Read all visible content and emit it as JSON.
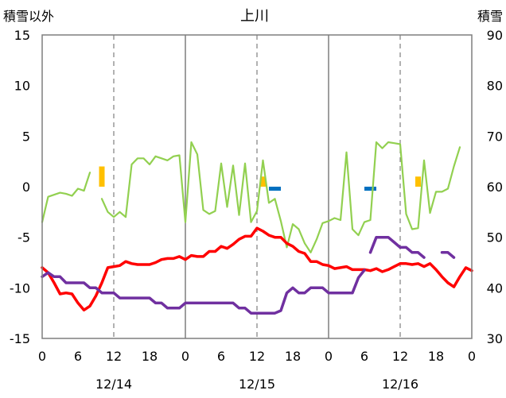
{
  "chart_data": {
    "type": "line",
    "title": "上川",
    "left_axis_label": "積雪以外",
    "right_axis_label": "積雪",
    "y_left": {
      "min": -15,
      "max": 15,
      "ticks": [
        -15,
        -10,
        -5,
        0,
        5,
        10,
        15
      ]
    },
    "y_right": {
      "min": 30,
      "max": 90,
      "ticks": [
        30,
        40,
        50,
        60,
        70,
        80,
        90
      ]
    },
    "x": {
      "min": 0,
      "max": 72,
      "ticks": [
        0,
        6,
        12,
        18,
        24,
        30,
        36,
        42,
        48,
        54,
        60,
        66,
        72
      ]
    },
    "x_tick_labels": [
      "0",
      "6",
      "12",
      "18",
      "0",
      "6",
      "12",
      "18",
      "0",
      "6",
      "12",
      "18",
      "0"
    ],
    "date_labels": [
      {
        "label": "12/14",
        "x": 12
      },
      {
        "label": "12/15",
        "x": 36
      },
      {
        "label": "12/16",
        "x": 60
      }
    ],
    "grid": {
      "solid_x": [
        24,
        48
      ],
      "dashed_x": [
        12,
        36,
        60
      ],
      "horizontal": "none"
    },
    "series": [
      {
        "key": "green",
        "color": "#92d050",
        "axis": "left",
        "points": [
          [
            0,
            -3.5
          ],
          [
            1,
            -1
          ],
          [
            3,
            -0.6
          ],
          [
            4,
            -0.7
          ],
          [
            5,
            -0.9
          ],
          [
            6,
            -0.2
          ],
          [
            7,
            -0.4
          ],
          [
            8,
            1.4
          ],
          null,
          [
            10,
            -1.2
          ],
          [
            11,
            -2.5
          ],
          [
            12,
            -3
          ],
          [
            13,
            -2.5
          ],
          [
            14,
            -3
          ],
          [
            15,
            2.2
          ],
          [
            16,
            2.8
          ],
          [
            17,
            2.8
          ],
          [
            18,
            2.2
          ],
          [
            19,
            3
          ],
          [
            20,
            2.8
          ],
          [
            21,
            2.6
          ],
          [
            22,
            3
          ],
          [
            23,
            3.1
          ],
          [
            24,
            -3.5
          ],
          [
            25,
            4.4
          ],
          [
            26,
            3.2
          ],
          [
            27,
            -2.3
          ],
          [
            28,
            -2.7
          ],
          [
            29,
            -2.4
          ],
          [
            30,
            2.3
          ],
          [
            31,
            -2
          ],
          [
            32,
            2.1
          ],
          [
            33,
            -2.8
          ],
          [
            34,
            2.3
          ],
          [
            35,
            -3.5
          ],
          [
            36,
            -2.4
          ],
          [
            37,
            2.6
          ],
          [
            38,
            -1.6
          ],
          [
            39,
            -1.2
          ],
          [
            40,
            -3.4
          ],
          [
            41,
            -6
          ],
          [
            42,
            -3.7
          ],
          [
            43,
            -4.2
          ],
          [
            44,
            -5.6
          ],
          [
            45,
            -6.5
          ],
          [
            46,
            -5.2
          ],
          [
            47,
            -3.6
          ],
          [
            48,
            -3.4
          ],
          [
            49,
            -3.1
          ],
          [
            50,
            -3.3
          ],
          [
            51,
            3.4
          ],
          [
            52,
            -4.2
          ],
          [
            53,
            -4.8
          ],
          [
            54,
            -3.5
          ],
          [
            55,
            -3.3
          ],
          [
            56,
            4.4
          ],
          [
            57,
            3.8
          ],
          [
            58,
            4.4
          ],
          [
            59,
            4.3
          ],
          [
            60,
            4.2
          ],
          [
            61,
            -2.7
          ],
          [
            62,
            -4.2
          ],
          [
            63,
            -4.1
          ],
          [
            64,
            2.6
          ],
          [
            65,
            -2.6
          ],
          [
            66,
            -0.5
          ],
          [
            67,
            -0.5
          ],
          [
            68,
            -0.2
          ],
          [
            69,
            2
          ],
          [
            70,
            3.9
          ]
        ]
      },
      {
        "key": "red",
        "color": "#ff0000",
        "axis": "left",
        "points": [
          [
            0,
            -8
          ],
          [
            1,
            -8.5
          ],
          [
            2,
            -9.5
          ],
          [
            3,
            -10.6
          ],
          [
            4,
            -10.5
          ],
          [
            5,
            -10.6
          ],
          [
            6,
            -11.5
          ],
          [
            7,
            -12.2
          ],
          [
            8,
            -11.8
          ],
          [
            9,
            -10.8
          ],
          [
            10,
            -9.5
          ],
          [
            11,
            -8
          ],
          [
            12,
            -7.9
          ],
          [
            13,
            -7.8
          ],
          [
            14,
            -7.4
          ],
          [
            15,
            -7.6
          ],
          [
            16,
            -7.7
          ],
          [
            17,
            -7.7
          ],
          [
            18,
            -7.7
          ],
          [
            19,
            -7.5
          ],
          [
            20,
            -7.2
          ],
          [
            21,
            -7.1
          ],
          [
            22,
            -7.1
          ],
          [
            23,
            -6.9
          ],
          [
            24,
            -7.2
          ],
          [
            25,
            -6.8
          ],
          [
            26,
            -6.9
          ],
          [
            27,
            -6.9
          ],
          [
            28,
            -6.4
          ],
          [
            29,
            -6.4
          ],
          [
            30,
            -5.9
          ],
          [
            31,
            -6.1
          ],
          [
            32,
            -5.7
          ],
          [
            33,
            -5.2
          ],
          [
            34,
            -4.9
          ],
          [
            35,
            -4.9
          ],
          [
            36,
            -4.1
          ],
          [
            37,
            -4.4
          ],
          [
            38,
            -4.8
          ],
          [
            39,
            -5
          ],
          [
            40,
            -5
          ],
          [
            41,
            -5.6
          ],
          [
            42,
            -5.9
          ],
          [
            43,
            -6.4
          ],
          [
            44,
            -6.6
          ],
          [
            45,
            -7.4
          ],
          [
            46,
            -7.4
          ],
          [
            47,
            -7.7
          ],
          [
            48,
            -7.8
          ],
          [
            49,
            -8.1
          ],
          [
            50,
            -8
          ],
          [
            51,
            -7.9
          ],
          [
            52,
            -8.2
          ],
          [
            53,
            -8.2
          ],
          [
            54,
            -8.2
          ],
          [
            55,
            -8.3
          ],
          [
            56,
            -8.1
          ],
          [
            57,
            -8.4
          ],
          [
            58,
            -8.2
          ],
          [
            59,
            -7.9
          ],
          [
            60,
            -7.6
          ],
          [
            61,
            -7.6
          ],
          [
            62,
            -7.7
          ],
          [
            63,
            -7.6
          ],
          [
            64,
            -7.9
          ],
          [
            65,
            -7.6
          ],
          [
            66,
            -8.2
          ],
          [
            67,
            -8.9
          ],
          [
            68,
            -9.5
          ],
          [
            69,
            -9.9
          ],
          [
            70,
            -8.9
          ],
          [
            71,
            -8
          ],
          [
            72,
            -8.3
          ]
        ]
      },
      {
        "key": "purple",
        "color": "#7030a0",
        "axis": "right",
        "points": [
          [
            0,
            42.2
          ],
          [
            1,
            43
          ],
          [
            2,
            42.2
          ],
          [
            3,
            42.2
          ],
          [
            4,
            41
          ],
          [
            5,
            41
          ],
          [
            6,
            41
          ],
          [
            7,
            41
          ],
          [
            8,
            40
          ],
          [
            9,
            40
          ],
          [
            10,
            39
          ],
          [
            11,
            39
          ],
          [
            12,
            39
          ],
          [
            13,
            38
          ],
          [
            14,
            38
          ],
          [
            15,
            38
          ],
          [
            16,
            38
          ],
          [
            17,
            38
          ],
          [
            18,
            38
          ],
          [
            19,
            37
          ],
          [
            20,
            37
          ],
          [
            21,
            36
          ],
          [
            22,
            36
          ],
          [
            23,
            36
          ],
          [
            24,
            37
          ],
          [
            25,
            37
          ],
          [
            26,
            37
          ],
          [
            27,
            37
          ],
          [
            28,
            37
          ],
          [
            29,
            37
          ],
          [
            30,
            37
          ],
          [
            31,
            37
          ],
          [
            32,
            37
          ],
          [
            33,
            36
          ],
          [
            34,
            36
          ],
          [
            35,
            35
          ],
          [
            36,
            35
          ],
          [
            37,
            35
          ],
          [
            38,
            35
          ],
          [
            39,
            35
          ],
          [
            40,
            35.5
          ],
          [
            41,
            39
          ],
          [
            42,
            40
          ],
          [
            43,
            39
          ],
          [
            44,
            39
          ],
          [
            45,
            40
          ],
          [
            46,
            40
          ],
          [
            47,
            40
          ],
          [
            48,
            39
          ],
          [
            49,
            39
          ],
          [
            50,
            39
          ],
          [
            51,
            39
          ],
          [
            52,
            39
          ],
          [
            53,
            42
          ],
          [
            54,
            43.5
          ],
          null,
          [
            55,
            47
          ],
          [
            56,
            50
          ],
          [
            57,
            50
          ],
          [
            58,
            50
          ],
          [
            59,
            49
          ],
          [
            60,
            48
          ],
          [
            61,
            48
          ],
          [
            62,
            47
          ],
          [
            63,
            47
          ],
          [
            64,
            46
          ],
          null,
          [
            67,
            47
          ],
          [
            68,
            47
          ],
          [
            69,
            46
          ]
        ]
      }
    ],
    "bars": [
      {
        "x": 10,
        "value": 2,
        "color": "#ffc000"
      },
      {
        "x": 37,
        "value": 1,
        "color": "#ffc000"
      },
      {
        "x": 63,
        "value": 1,
        "color": "#ffc000"
      },
      {
        "x": 39,
        "value": -0.4,
        "color": "#0070c0"
      },
      {
        "x": 55,
        "value": -0.4,
        "color": "#0070c0"
      }
    ]
  }
}
